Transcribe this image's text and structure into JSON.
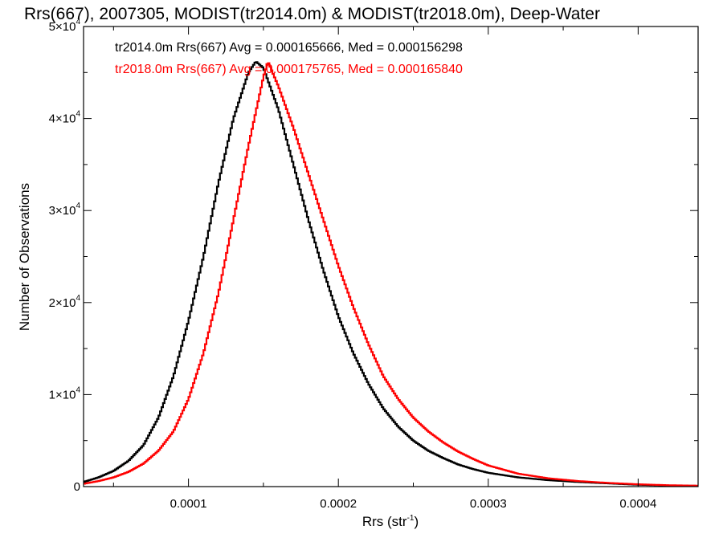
{
  "chart_data": {
    "type": "histogram",
    "title": "Rrs(667), 2007305, MODIST(tr2014.0m) & MODIST(tr2018.0m), Deep-Water",
    "xlabel_main": "Rrs (str",
    "xlabel_sup": "-1",
    "xlabel_end": ")",
    "ylabel": "Number of Observations",
    "xlim": [
      3e-05,
      0.00044
    ],
    "ylim": [
      0,
      50000
    ],
    "x_ticks": [
      {
        "value": 0.0001,
        "label": "0.0001"
      },
      {
        "value": 0.0002,
        "label": "0.0002"
      },
      {
        "value": 0.0003,
        "label": "0.0003"
      },
      {
        "value": 0.0004,
        "label": "0.0004"
      }
    ],
    "y_ticks": [
      {
        "value": 0,
        "label": "0",
        "sup": ""
      },
      {
        "value": 10000,
        "label": "1×10",
        "sup": "4"
      },
      {
        "value": 20000,
        "label": "2×10",
        "sup": "4"
      },
      {
        "value": 30000,
        "label": "3×10",
        "sup": "4"
      },
      {
        "value": 40000,
        "label": "4×10",
        "sup": "4"
      },
      {
        "value": 50000,
        "label": "5×10",
        "sup": "4"
      }
    ],
    "series": [
      {
        "name": "tr2014.0m",
        "color": "#000000",
        "legend": "tr2014.0m Rrs(667) Avg = 0.000165666, Med = 0.000156298",
        "points": [
          [
            3e-05,
            500
          ],
          [
            4e-05,
            1000
          ],
          [
            5e-05,
            1700
          ],
          [
            6e-05,
            2800
          ],
          [
            7e-05,
            4500
          ],
          [
            8e-05,
            7500
          ],
          [
            9e-05,
            12000
          ],
          [
            0.0001,
            18000
          ],
          [
            0.00011,
            25000
          ],
          [
            0.00012,
            33000
          ],
          [
            0.00013,
            40000
          ],
          [
            0.00014,
            45000
          ],
          [
            0.000145,
            46200
          ],
          [
            0.00015,
            45500
          ],
          [
            0.00016,
            41000
          ],
          [
            0.00017,
            35000
          ],
          [
            0.00018,
            29000
          ],
          [
            0.00019,
            23500
          ],
          [
            0.0002,
            18500
          ],
          [
            0.00021,
            14500
          ],
          [
            0.00022,
            11200
          ],
          [
            0.00023,
            8500
          ],
          [
            0.00024,
            6500
          ],
          [
            0.00025,
            5000
          ],
          [
            0.00026,
            3900
          ],
          [
            0.00027,
            3100
          ],
          [
            0.00028,
            2400
          ],
          [
            0.00029,
            1900
          ],
          [
            0.0003,
            1500
          ],
          [
            0.00032,
            1000
          ],
          [
            0.00034,
            700
          ],
          [
            0.00036,
            500
          ],
          [
            0.00038,
            350
          ],
          [
            0.0004,
            200
          ],
          [
            0.00042,
            120
          ],
          [
            0.00044,
            80
          ]
        ]
      },
      {
        "name": "tr2018.0m",
        "color": "#ff0000",
        "legend": "tr2018.0m Rrs(667) Avg = 0.000175765, Med = 0.000165840",
        "points": [
          [
            3e-05,
            300
          ],
          [
            4e-05,
            600
          ],
          [
            5e-05,
            1000
          ],
          [
            6e-05,
            1600
          ],
          [
            7e-05,
            2500
          ],
          [
            8e-05,
            3900
          ],
          [
            9e-05,
            6000
          ],
          [
            0.0001,
            9500
          ],
          [
            0.00011,
            14500
          ],
          [
            0.00012,
            21000
          ],
          [
            0.00013,
            29000
          ],
          [
            0.00014,
            37000
          ],
          [
            0.00015,
            44500
          ],
          [
            0.000153,
            46200
          ],
          [
            0.00016,
            43500
          ],
          [
            0.00017,
            39000
          ],
          [
            0.00018,
            34000
          ],
          [
            0.00019,
            29000
          ],
          [
            0.0002,
            24000
          ],
          [
            0.00021,
            19500
          ],
          [
            0.00022,
            15500
          ],
          [
            0.00023,
            12000
          ],
          [
            0.00024,
            9500
          ],
          [
            0.00025,
            7500
          ],
          [
            0.00026,
            6000
          ],
          [
            0.00027,
            4800
          ],
          [
            0.00028,
            3800
          ],
          [
            0.00029,
            3000
          ],
          [
            0.0003,
            2300
          ],
          [
            0.00032,
            1400
          ],
          [
            0.00034,
            900
          ],
          [
            0.00036,
            600
          ],
          [
            0.00038,
            400
          ],
          [
            0.0004,
            250
          ],
          [
            0.00042,
            150
          ],
          [
            0.00044,
            100
          ]
        ]
      }
    ]
  }
}
